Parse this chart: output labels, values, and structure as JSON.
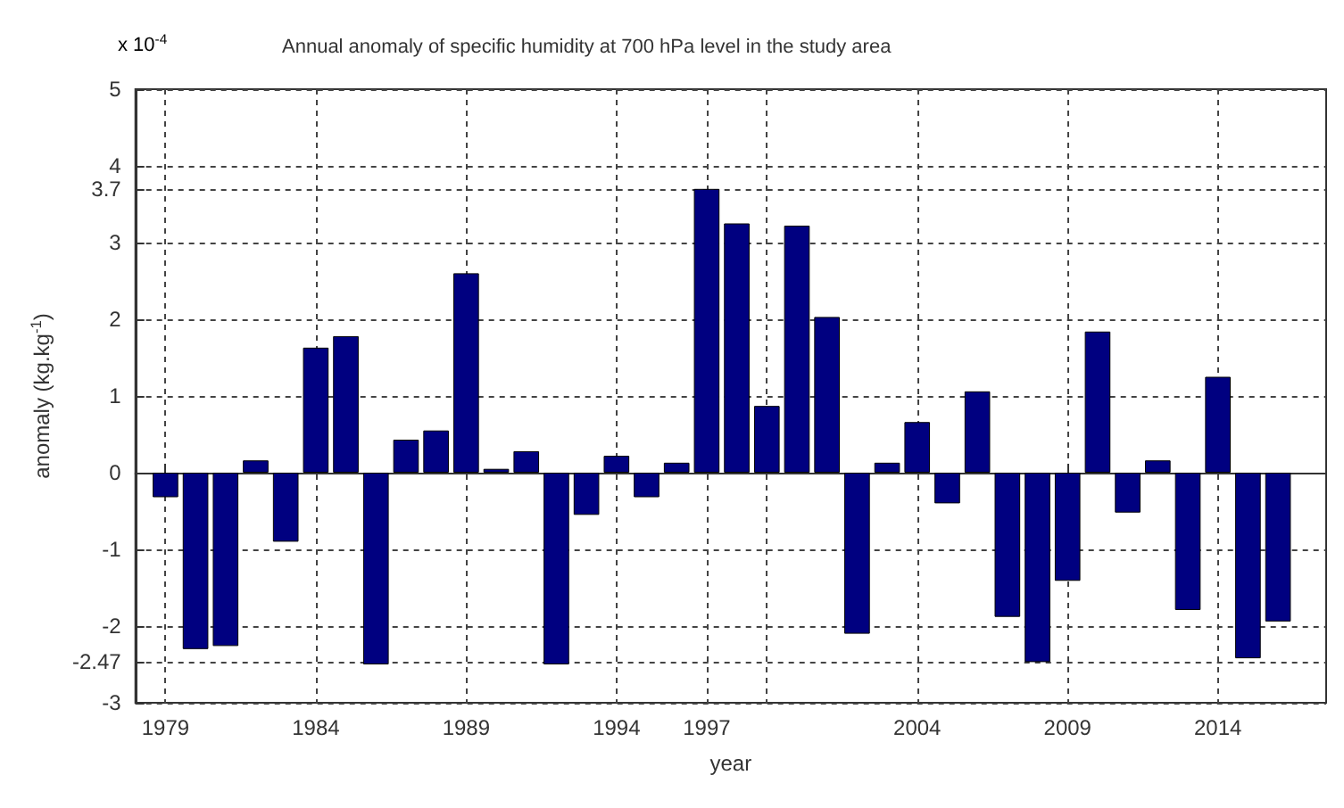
{
  "chart_data": {
    "type": "bar",
    "title": "Annual anomaly of specific humidity at 700 hPa level in the study area",
    "xlabel": "year",
    "ylabel": "anomaly (kg.kg$^{-1}$)",
    "annotations": [
      "x 10$^{-4}$"
    ],
    "x": [
      1979,
      1980,
      1981,
      1982,
      1983,
      1984,
      1985,
      1986,
      1987,
      1988,
      1989,
      1990,
      1991,
      1992,
      1993,
      1994,
      1995,
      1996,
      1997,
      1998,
      1999,
      2000,
      2001,
      2002,
      2003,
      2004,
      2005,
      2006,
      2007,
      2008,
      2009,
      2010,
      2011,
      2012,
      2013,
      2014,
      2015,
      2016
    ],
    "values": [
      -0.32,
      -2.3,
      -2.26,
      0.16,
      -0.9,
      1.63,
      1.78,
      -2.5,
      0.43,
      0.55,
      2.6,
      0.05,
      0.28,
      -2.5,
      -0.55,
      0.22,
      -0.32,
      0.13,
      3.7,
      3.25,
      0.87,
      3.22,
      2.03,
      -2.1,
      0.13,
      0.66,
      -0.4,
      1.06,
      -1.88,
      -2.47,
      -1.41,
      1.84,
      -0.52,
      0.16,
      -1.79,
      1.25,
      -2.42,
      -1.94
    ],
    "color": "#000080",
    "xlim": [
      1978,
      2017.6
    ],
    "xticks": [
      1979,
      1984,
      1989,
      1994,
      1997,
      {
        "value": 1999,
        "label": null
      },
      2004,
      2009,
      2014
    ],
    "ylim": [
      -3,
      5
    ],
    "yticks": [
      -3,
      -2.47,
      -2,
      -1,
      0,
      1,
      2,
      3,
      3.7,
      4,
      5
    ],
    "grid": true
  }
}
